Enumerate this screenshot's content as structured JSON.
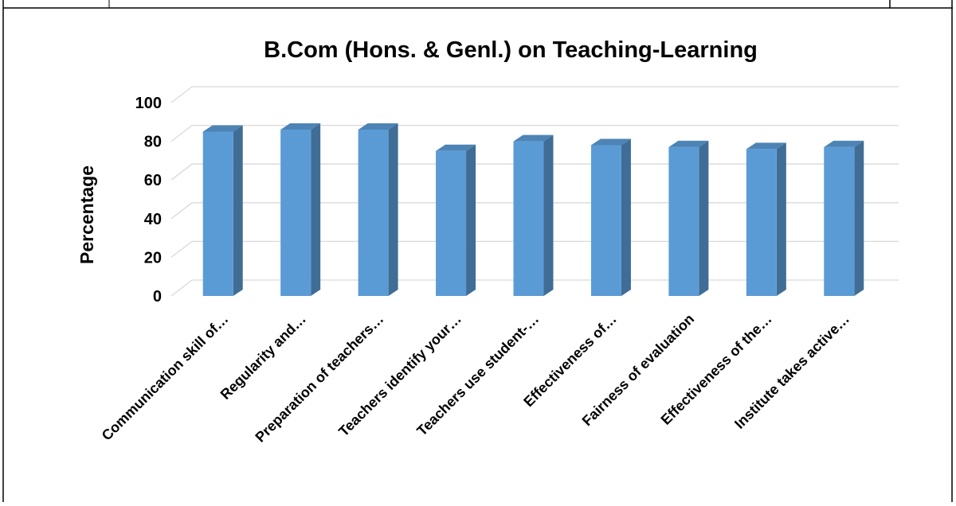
{
  "chart_data": {
    "type": "bar3d",
    "title": "B.Com (Hons. & Genl.) on Teaching-Learning",
    "y_label": "Percentage",
    "categories": [
      "Communication skill of…",
      "Regularity and…",
      "Preparation of teachers…",
      "Teachers identify your…",
      "Teachers use student-…",
      "Effectiveness of…",
      "Fairness of evaluation",
      "Effectiveness of the…",
      "Institute takes active…"
    ],
    "values": [
      85,
      86,
      86,
      75,
      80,
      78,
      77,
      76,
      77
    ],
    "color": "#5b9bd5",
    "ylim": [
      0,
      100
    ],
    "yticks": [
      0,
      20,
      40,
      60,
      80,
      100
    ],
    "grid": true
  }
}
